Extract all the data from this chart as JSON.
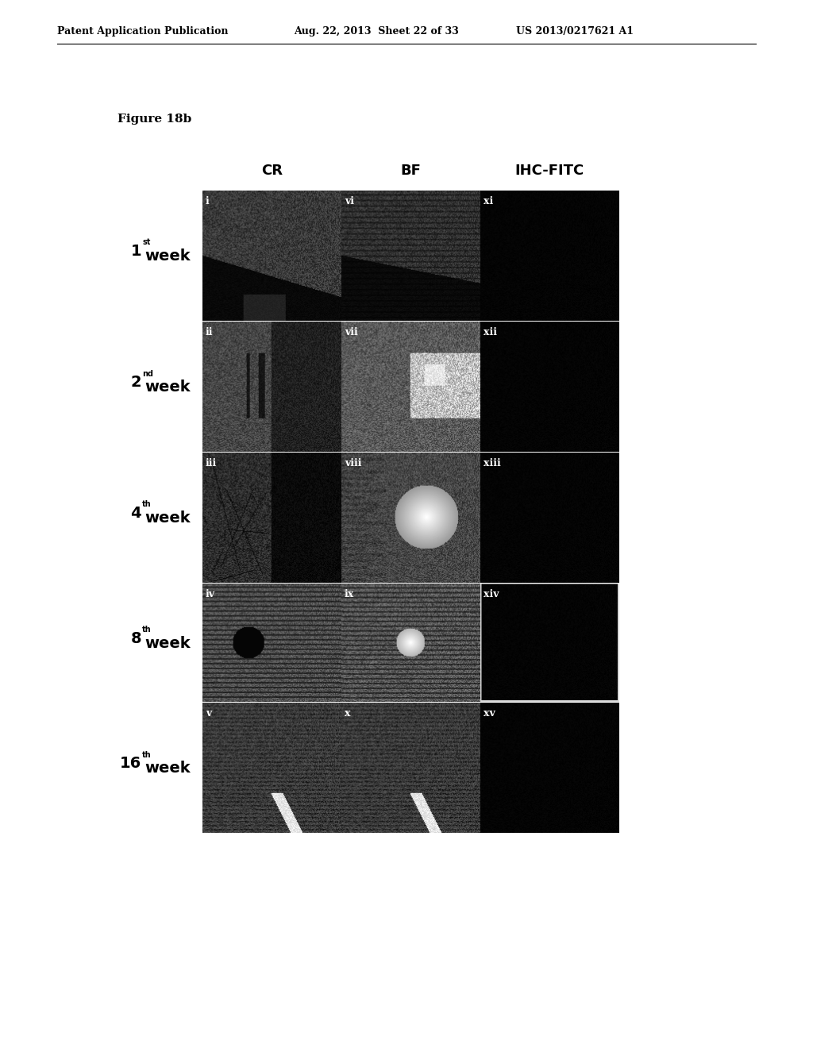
{
  "header_left": "Patent Application Publication",
  "header_center": "Aug. 22, 2013  Sheet 22 of 33",
  "header_right": "US 2013/0217621 A1",
  "figure_label": "Figure 18b",
  "col_headers": [
    "CR",
    "BF",
    "IHC-FITC"
  ],
  "row_labels": [
    "1st week",
    "2nd week",
    "4th week",
    "8th week",
    "16th week"
  ],
  "row_superscripts": [
    "st",
    "nd",
    "th",
    "th",
    "th"
  ],
  "row_numbers": [
    "1",
    "2",
    "4",
    "8",
    "16"
  ],
  "cell_labels": [
    [
      "i",
      "vi",
      "xi"
    ],
    [
      "ii",
      "vii",
      "xii"
    ],
    [
      "iii",
      "viii",
      "xiii"
    ],
    [
      "iv",
      "ix",
      "xiv"
    ],
    [
      "v",
      "x",
      "xv"
    ]
  ],
  "background_color": "#ffffff",
  "grid_color": "#000000",
  "label_color": "#ffffff",
  "header_fontsize": 9,
  "figure_label_fontsize": 11,
  "col_header_fontsize": 13,
  "row_label_fontsize": 13,
  "cell_label_fontsize": 9
}
